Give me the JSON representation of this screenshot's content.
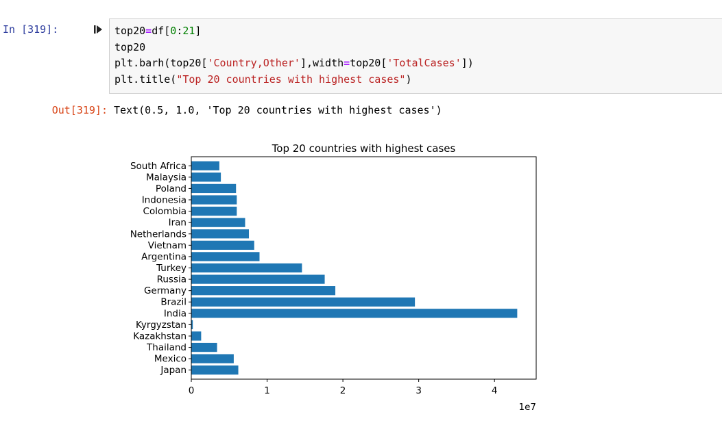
{
  "cell": {
    "in_prompt": "In [319]:",
    "out_prompt": "Out[319]:",
    "run_icon": "step-run-icon",
    "code": [
      [
        {
          "t": "top20"
        },
        {
          "t": "=",
          "c": "op"
        },
        {
          "t": "df["
        },
        {
          "t": "0",
          "c": "num"
        },
        {
          "t": ":"
        },
        {
          "t": "21",
          "c": "num"
        },
        {
          "t": "]"
        }
      ],
      [
        {
          "t": "top20"
        }
      ],
      [
        {
          "t": "plt.barh(top20["
        },
        {
          "t": "'Country,Other'",
          "c": "str"
        },
        {
          "t": "],width"
        },
        {
          "t": "=",
          "c": "op"
        },
        {
          "t": "top20["
        },
        {
          "t": "'TotalCases'",
          "c": "str"
        },
        {
          "t": "])"
        }
      ],
      [
        {
          "t": "plt.title("
        },
        {
          "t": "\"Top 20 countries with highest cases\"",
          "c": "str"
        },
        {
          "t": ")"
        }
      ]
    ],
    "output_text": "Text(0.5, 1.0, 'Top 20 countries with highest cases')"
  },
  "chart_data": {
    "type": "bar",
    "orientation": "horizontal",
    "title": "Top 20 countries with highest cases",
    "categories": [
      "Japan",
      "Mexico",
      "Thailand",
      "Kazakhstan",
      "Kyrgyzstan",
      "India",
      "Brazil",
      "Germany",
      "Russia",
      "Turkey",
      "Argentina",
      "Vietnam",
      "Netherlands",
      "Iran",
      "Colombia",
      "Indonesia",
      "Poland",
      "Malaysia",
      "South Africa"
    ],
    "values": [
      6200000,
      5600000,
      3400000,
      1300000,
      200000,
      43000000,
      29500000,
      19000000,
      17600000,
      14600000,
      9000000,
      8300000,
      7600000,
      7100000,
      6000000,
      6000000,
      5900000,
      3900000,
      3700000
    ],
    "x_ticks": [
      "0",
      "1",
      "2",
      "3",
      "4"
    ],
    "x_offset_label": "1e7",
    "xlim": [
      0,
      45500000
    ],
    "bar_color": "#1f77b4",
    "grid": false
  }
}
